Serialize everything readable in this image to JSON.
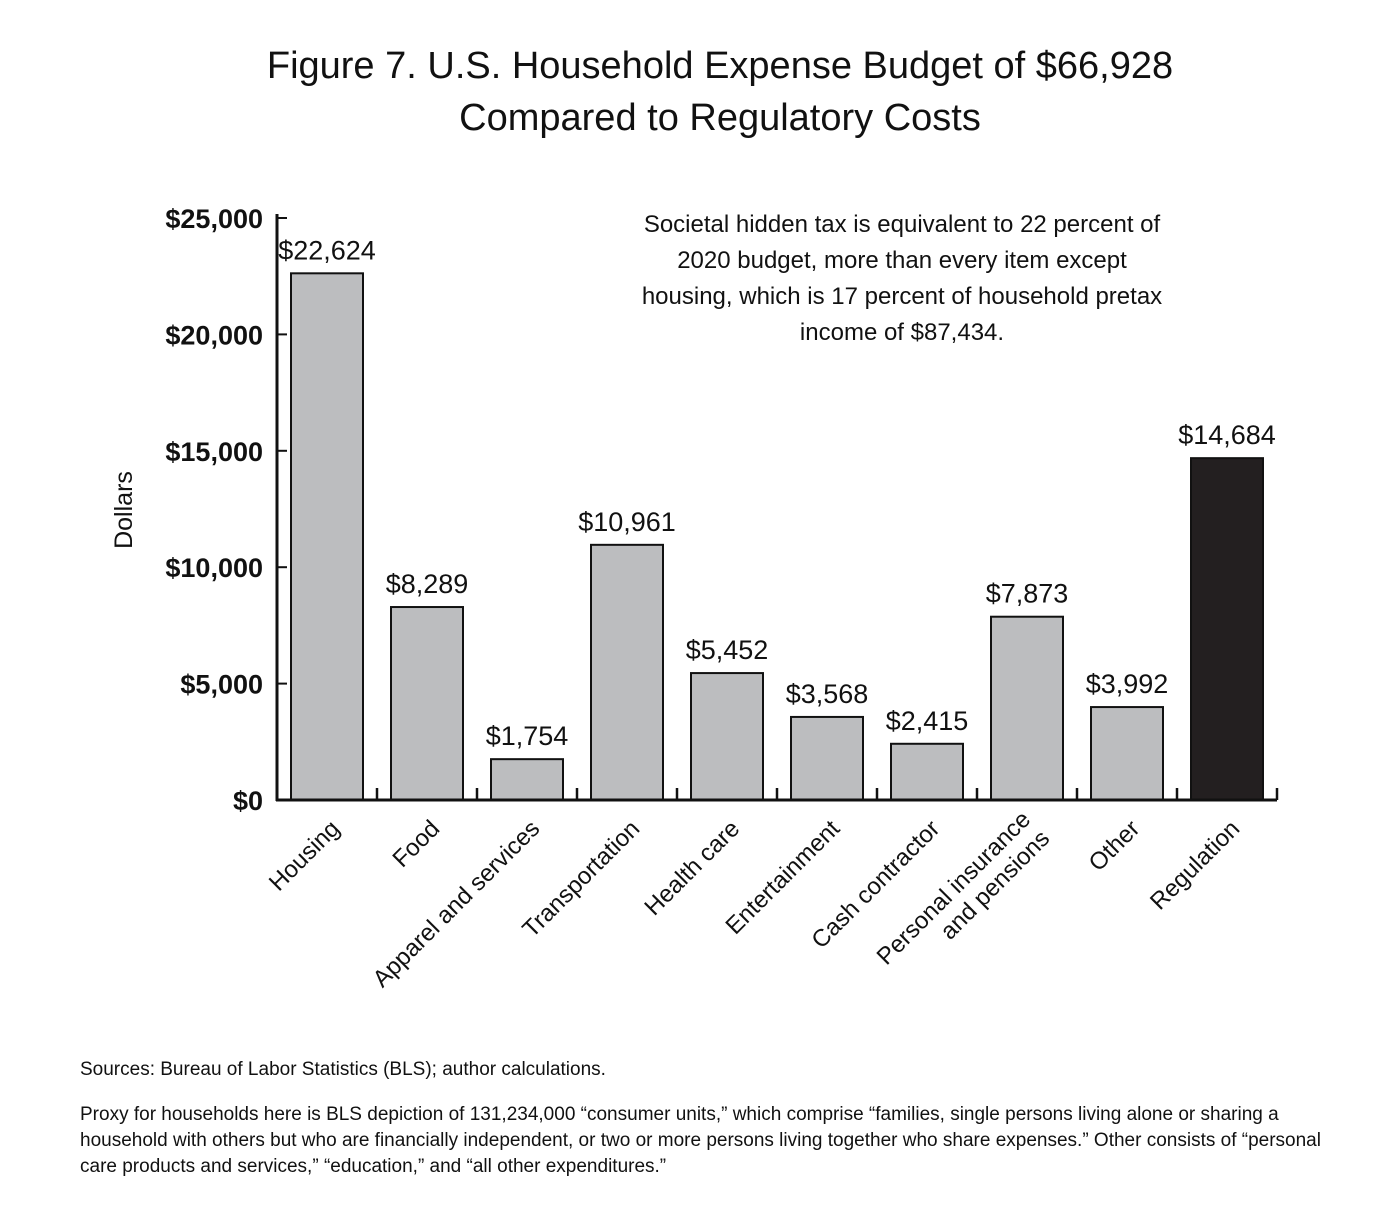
{
  "chart_data": {
    "type": "bar",
    "title_line1": "Figure 7. U.S. Household Expense Budget of $66,928",
    "title_line2": "Compared to Regulatory Costs",
    "ylabel": "Dollars",
    "xlabel": "",
    "ylim": [
      0,
      25000
    ],
    "yticks": [
      0,
      5000,
      10000,
      15000,
      20000,
      25000
    ],
    "ytick_labels": [
      "$0",
      "$5,000",
      "$10,000",
      "$15,000",
      "$20,000",
      "$25,000"
    ],
    "categories": [
      "Housing",
      "Food",
      "Apparel and services",
      "Transportation",
      "Health care",
      "Entertainment",
      "Cash contractor",
      "Personal insurance and pensions",
      "Other",
      "Regulation"
    ],
    "category_label_lines": [
      [
        "Housing"
      ],
      [
        "Food"
      ],
      [
        "Apparel and services"
      ],
      [
        "Transportation"
      ],
      [
        "Health care"
      ],
      [
        "Entertainment"
      ],
      [
        "Cash contractor"
      ],
      [
        "Personal insurance",
        "and pensions"
      ],
      [
        "Other"
      ],
      [
        "Regulation"
      ]
    ],
    "values": [
      22624,
      8289,
      1754,
      10961,
      5452,
      3568,
      2415,
      7873,
      3992,
      14684
    ],
    "data_labels": [
      "$22,624",
      "$8,289",
      "$1,754",
      "$10,961",
      "$5,452",
      "$3,568",
      "$2,415",
      "$7,873",
      "$3,992",
      "$14,684"
    ],
    "colors": {
      "default": "#bcbdbf",
      "highlight": "#231f20",
      "edge": "#111111"
    },
    "highlight_index": 9,
    "grid": false,
    "annotation": [
      "Societal hidden tax is equivalent to 22 percent of",
      "2020 budget, more than every item except",
      "housing, which is 17 percent of household pretax",
      "income of $87,434."
    ]
  },
  "sources": "Sources: Bureau of Labor Statistics (BLS); author calculations.",
  "footnote": "Proxy for households here is BLS depiction of 131,234,000 “consumer units,” which comprise “families, single persons living alone or sharing a household with others but who are financially independent, or two or more persons living together who share expenses.” Other consists of “personal care products and services,” “education,” and “all other expenditures.”"
}
